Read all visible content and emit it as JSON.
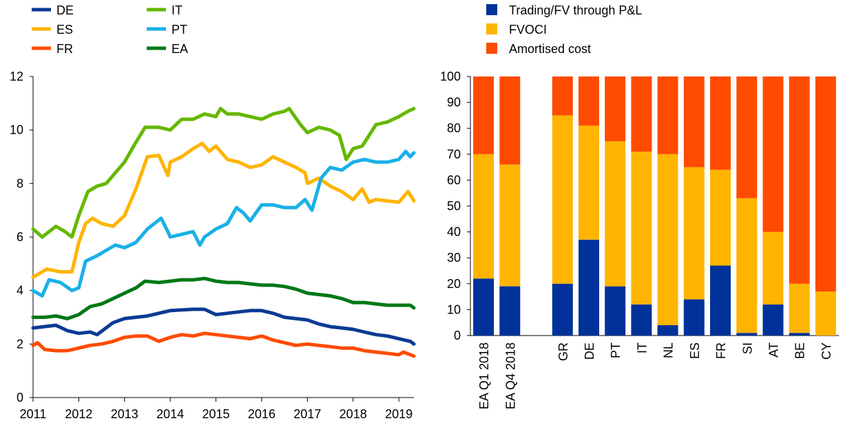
{
  "chart_data": [
    {
      "type": "line",
      "title": "",
      "xlabel": "",
      "ylabel": "",
      "ylim": [
        0,
        12
      ],
      "yticks": [
        "0",
        "2",
        "4",
        "6",
        "8",
        "10",
        "12"
      ],
      "xticks": [
        "2011",
        "2012",
        "2013",
        "2014",
        "2015",
        "2016",
        "2017",
        "2018",
        "2019"
      ],
      "xlim": [
        2011.0,
        2019.33
      ],
      "grid": false,
      "legend_position": "top-left",
      "series": [
        {
          "name": "DE",
          "color": "#0a3a94",
          "x": [
            2011.0,
            2011.5,
            2011.75,
            2012.0,
            2012.25,
            2012.4,
            2012.75,
            2013.0,
            2013.5,
            2014.0,
            2014.5,
            2014.75,
            2015.0,
            2015.25,
            2015.5,
            2015.75,
            2016.0,
            2016.25,
            2016.5,
            2016.75,
            2017.0,
            2017.25,
            2017.5,
            2017.75,
            2018.0,
            2018.25,
            2018.5,
            2018.75,
            2019.0,
            2019.25,
            2019.33
          ],
          "y": [
            2.6,
            2.7,
            2.5,
            2.4,
            2.45,
            2.35,
            2.8,
            2.95,
            3.05,
            3.25,
            3.3,
            3.3,
            3.1,
            3.15,
            3.2,
            3.25,
            3.25,
            3.15,
            3.0,
            2.95,
            2.9,
            2.75,
            2.65,
            2.6,
            2.55,
            2.45,
            2.35,
            2.3,
            2.2,
            2.1,
            2.0
          ]
        },
        {
          "name": "ES",
          "color": "#ffb400",
          "x": [
            2011.0,
            2011.3,
            2011.6,
            2011.85,
            2012.0,
            2012.15,
            2012.3,
            2012.5,
            2012.75,
            2013.0,
            2013.25,
            2013.5,
            2013.75,
            2013.95,
            2014.0,
            2014.25,
            2014.5,
            2014.7,
            2014.85,
            2015.0,
            2015.25,
            2015.5,
            2015.75,
            2016.0,
            2016.25,
            2016.5,
            2016.75,
            2016.95,
            2017.0,
            2017.25,
            2017.5,
            2017.75,
            2018.0,
            2018.2,
            2018.35,
            2018.5,
            2018.75,
            2019.0,
            2019.2,
            2019.33
          ],
          "y": [
            4.5,
            4.8,
            4.7,
            4.7,
            5.8,
            6.5,
            6.7,
            6.5,
            6.4,
            6.8,
            7.8,
            9.0,
            9.05,
            8.3,
            8.8,
            9.0,
            9.3,
            9.5,
            9.2,
            9.4,
            8.9,
            8.8,
            8.6,
            8.7,
            9.0,
            8.8,
            8.6,
            8.4,
            8.0,
            8.2,
            7.9,
            7.7,
            7.4,
            7.8,
            7.3,
            7.4,
            7.35,
            7.3,
            7.7,
            7.35
          ]
        },
        {
          "name": "FR",
          "color": "#ff4b00",
          "x": [
            2011.0,
            2011.1,
            2011.25,
            2011.5,
            2011.75,
            2012.0,
            2012.25,
            2012.5,
            2012.75,
            2013.0,
            2013.25,
            2013.5,
            2013.75,
            2014.0,
            2014.25,
            2014.5,
            2014.75,
            2015.0,
            2015.25,
            2015.5,
            2015.75,
            2016.0,
            2016.25,
            2016.5,
            2016.75,
            2017.0,
            2017.25,
            2017.5,
            2017.75,
            2018.0,
            2018.25,
            2018.5,
            2018.75,
            2019.0,
            2019.1,
            2019.33
          ],
          "y": [
            1.95,
            2.05,
            1.8,
            1.75,
            1.75,
            1.85,
            1.95,
            2.0,
            2.1,
            2.25,
            2.3,
            2.3,
            2.1,
            2.25,
            2.35,
            2.3,
            2.4,
            2.35,
            2.3,
            2.25,
            2.2,
            2.3,
            2.15,
            2.05,
            1.95,
            2.0,
            1.95,
            1.9,
            1.85,
            1.85,
            1.75,
            1.7,
            1.65,
            1.6,
            1.7,
            1.55
          ]
        },
        {
          "name": "IT",
          "color": "#65b800",
          "x": [
            2011.0,
            2011.2,
            2011.5,
            2011.7,
            2011.85,
            2012.0,
            2012.2,
            2012.4,
            2012.6,
            2012.8,
            2013.0,
            2013.2,
            2013.45,
            2013.75,
            2014.0,
            2014.25,
            2014.5,
            2014.75,
            2015.0,
            2015.1,
            2015.25,
            2015.5,
            2015.75,
            2016.0,
            2016.25,
            2016.5,
            2016.6,
            2016.85,
            2017.0,
            2017.25,
            2017.5,
            2017.7,
            2017.85,
            2018.0,
            2018.2,
            2018.5,
            2018.75,
            2019.0,
            2019.2,
            2019.33
          ],
          "y": [
            6.3,
            6.0,
            6.4,
            6.2,
            6.0,
            6.8,
            7.7,
            7.9,
            8.0,
            8.4,
            8.8,
            9.4,
            10.1,
            10.1,
            10.0,
            10.4,
            10.4,
            10.6,
            10.5,
            10.8,
            10.6,
            10.6,
            10.5,
            10.4,
            10.6,
            10.7,
            10.8,
            10.2,
            9.9,
            10.1,
            10.0,
            9.8,
            8.9,
            9.3,
            9.4,
            10.2,
            10.3,
            10.5,
            10.7,
            10.8
          ]
        },
        {
          "name": "PT",
          "color": "#1ab0e8",
          "x": [
            2011.0,
            2011.2,
            2011.35,
            2011.6,
            2011.85,
            2012.0,
            2012.15,
            2012.4,
            2012.6,
            2012.8,
            2013.0,
            2013.25,
            2013.5,
            2013.8,
            2013.95,
            2014.0,
            2014.25,
            2014.5,
            2014.65,
            2014.75,
            2015.0,
            2015.25,
            2015.45,
            2015.6,
            2015.75,
            2016.0,
            2016.25,
            2016.5,
            2016.75,
            2016.95,
            2017.1,
            2017.3,
            2017.5,
            2017.75,
            2018.0,
            2018.25,
            2018.5,
            2018.75,
            2019.0,
            2019.15,
            2019.25,
            2019.33
          ],
          "y": [
            4.0,
            3.8,
            4.4,
            4.3,
            4.0,
            4.1,
            5.1,
            5.3,
            5.5,
            5.7,
            5.6,
            5.8,
            6.3,
            6.7,
            6.2,
            6.0,
            6.1,
            6.2,
            5.7,
            6.0,
            6.3,
            6.5,
            7.1,
            6.9,
            6.6,
            7.2,
            7.2,
            7.1,
            7.1,
            7.4,
            7.0,
            8.2,
            8.6,
            8.5,
            8.8,
            8.9,
            8.8,
            8.8,
            8.9,
            9.2,
            9.0,
            9.15
          ]
        },
        {
          "name": "EA",
          "color": "#007816",
          "x": [
            2011.0,
            2011.25,
            2011.5,
            2011.75,
            2012.0,
            2012.25,
            2012.5,
            2012.75,
            2013.0,
            2013.25,
            2013.45,
            2013.75,
            2014.0,
            2014.25,
            2014.5,
            2014.75,
            2015.0,
            2015.25,
            2015.5,
            2015.75,
            2016.0,
            2016.25,
            2016.5,
            2016.75,
            2017.0,
            2017.25,
            2017.5,
            2017.75,
            2018.0,
            2018.25,
            2018.5,
            2018.75,
            2019.0,
            2019.25,
            2019.33
          ],
          "y": [
            3.0,
            3.0,
            3.05,
            2.95,
            3.1,
            3.4,
            3.5,
            3.7,
            3.9,
            4.1,
            4.35,
            4.3,
            4.35,
            4.4,
            4.4,
            4.45,
            4.35,
            4.3,
            4.3,
            4.25,
            4.2,
            4.2,
            4.15,
            4.05,
            3.9,
            3.85,
            3.8,
            3.7,
            3.55,
            3.55,
            3.5,
            3.45,
            3.45,
            3.45,
            3.35
          ]
        }
      ]
    },
    {
      "type": "bar",
      "stacked": true,
      "title": "",
      "xlabel": "",
      "ylabel": "",
      "ylim": [
        0,
        100
      ],
      "yticks": [
        "0",
        "10",
        "20",
        "30",
        "40",
        "50",
        "60",
        "70",
        "80",
        "90",
        "100"
      ],
      "grid": false,
      "legend_position": "top",
      "categories": [
        "EA Q1 2018",
        "EA Q4 2018",
        "",
        "GR",
        "DE",
        "PT",
        "IT",
        "NL",
        "ES",
        "FR",
        "SI",
        "AT",
        "BE",
        "CY"
      ],
      "series": [
        {
          "name": "Trading/FV through P&L",
          "color": "#003299",
          "values": [
            22,
            19,
            null,
            20,
            37,
            19,
            12,
            4,
            14,
            27,
            1,
            12,
            1,
            0
          ]
        },
        {
          "name": "FVOCI",
          "color": "#ffb400",
          "values": [
            48,
            47,
            null,
            65,
            44,
            56,
            59,
            66,
            51,
            37,
            52,
            28,
            19,
            17
          ]
        },
        {
          "name": "Amortised cost",
          "color": "#ff4b00",
          "values": [
            30,
            34,
            null,
            15,
            19,
            25,
            29,
            30,
            35,
            36,
            47,
            60,
            80,
            83
          ]
        }
      ]
    }
  ]
}
